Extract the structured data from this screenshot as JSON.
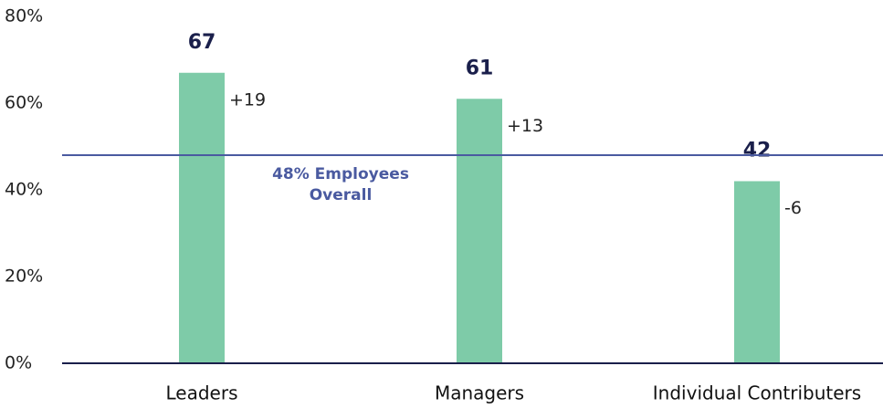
{
  "chart_data": {
    "type": "bar",
    "categories": [
      "Leaders",
      "Managers",
      "Individual Contributers"
    ],
    "values": [
      67,
      61,
      42
    ],
    "annotations": [
      "+19",
      "+13",
      "-6"
    ],
    "color": "#7ecba8",
    "ylim": [
      0,
      80
    ],
    "yticks": [
      {
        "value": 0,
        "label": "0%"
      },
      {
        "value": 20,
        "label": "20%"
      },
      {
        "value": 40,
        "label": "40%"
      },
      {
        "value": 60,
        "label": "60%"
      },
      {
        "value": 80,
        "label": "80%"
      }
    ],
    "reference_line": {
      "value": 48,
      "label": [
        "48% Employees",
        "Overall"
      ],
      "color": "#4a5aa0"
    },
    "grid": false
  }
}
